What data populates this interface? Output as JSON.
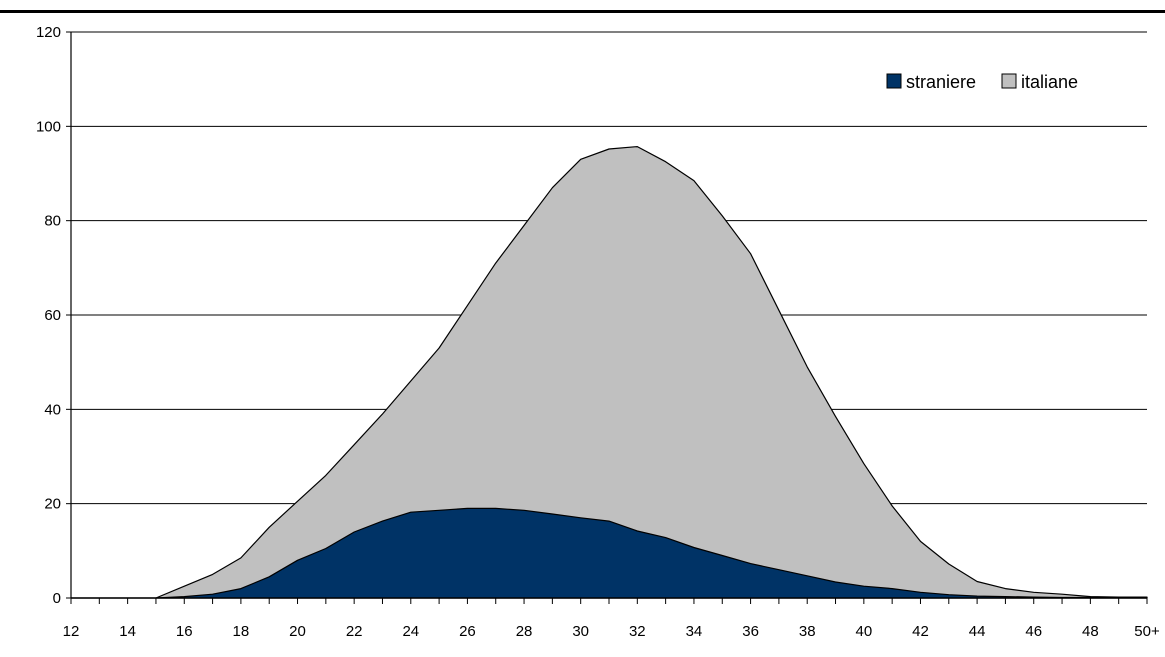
{
  "chart_data": {
    "type": "area",
    "stacked": true,
    "x": [
      "12",
      "13",
      "14",
      "15",
      "16",
      "17",
      "18",
      "19",
      "20",
      "21",
      "22",
      "23",
      "24",
      "25",
      "26",
      "27",
      "28",
      "29",
      "30",
      "31",
      "32",
      "33",
      "34",
      "35",
      "36",
      "37",
      "38",
      "39",
      "40",
      "41",
      "42",
      "43",
      "44",
      "45",
      "46",
      "47",
      "48",
      "49",
      "50+"
    ],
    "x_tick_labels": [
      "12",
      "14",
      "16",
      "18",
      "20",
      "22",
      "24",
      "26",
      "28",
      "30",
      "32",
      "34",
      "36",
      "38",
      "40",
      "42",
      "44",
      "46",
      "48",
      "50+"
    ],
    "series": [
      {
        "name": "straniere",
        "color": "#003366",
        "values": [
          0,
          0,
          0,
          0,
          0.3,
          0.8,
          2,
          4.5,
          8,
          10.5,
          14,
          16.3,
          18.2,
          18.6,
          19,
          19,
          18.6,
          17.8,
          17,
          16.3,
          14.2,
          12.8,
          10.7,
          9,
          7.3,
          6,
          4.7,
          3.4,
          2.5,
          2,
          1.2,
          0.7,
          0.4,
          0.3,
          0.2,
          0.1,
          0.1,
          0.05,
          0.05
        ]
      },
      {
        "name": "italiane",
        "color": "#c0c0c0",
        "total_values": [
          0,
          0,
          0,
          0,
          2.5,
          5,
          8.5,
          15,
          20.5,
          26,
          32.5,
          39,
          46,
          53,
          62,
          71,
          79,
          87,
          93,
          95.2,
          95.7,
          92.5,
          88.5,
          81,
          73,
          61,
          49,
          38.5,
          28.5,
          19.5,
          12,
          7.2,
          3.5,
          2,
          1.2,
          0.8,
          0.3,
          0.2,
          0.2
        ]
      }
    ],
    "ylim": [
      0,
      120
    ],
    "y_ticks": [
      0,
      20,
      40,
      60,
      80,
      100,
      120
    ],
    "grid": true,
    "legend": {
      "position": "top-right",
      "entries": [
        "straniere",
        "italiane"
      ]
    },
    "title": "",
    "xlabel": "",
    "ylabel": ""
  }
}
